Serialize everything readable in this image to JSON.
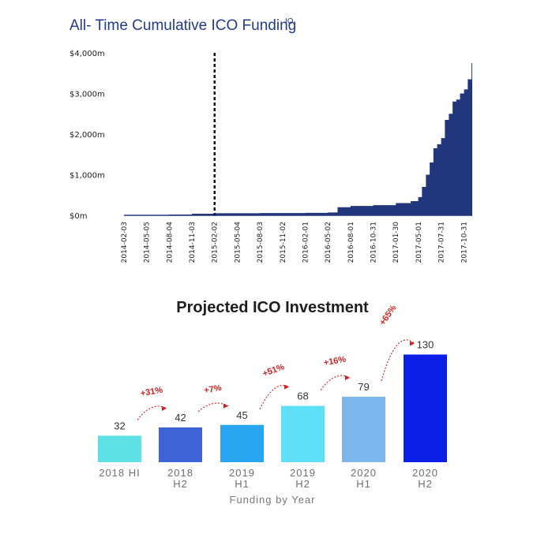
{
  "chart_data": [
    {
      "type": "area",
      "title": "All- Time Cumulative ICO Funding",
      "title_superscript": "IO",
      "ylim": [
        0,
        4000
      ],
      "y_ticks": [
        "$0m",
        "$1,000m",
        "$2,000m",
        "$3,000m",
        "$4,000m"
      ],
      "x_tick_labels": [
        "2014-02-03",
        "2014-05-05",
        "2014-08-04",
        "2014-11-03",
        "2015-02-02",
        "2015-05-04",
        "2015-08-03",
        "2015-11-02",
        "2016-02-01",
        "2016-05-02",
        "2016-08-01",
        "2016-10-31",
        "2017-01-30",
        "2017-05-01",
        "2017-07-31",
        "2017-10-31"
      ],
      "x_domain": [
        "2014-02-03",
        "2017-12-03"
      ],
      "marker_date": "2015-02-02",
      "fill_color": "#22367d",
      "x": [
        "2014-02-03",
        "2014-05-05",
        "2014-08-04",
        "2014-11-03",
        "2015-02-02",
        "2015-08-03",
        "2016-02-01",
        "2016-05-02",
        "2016-06-10",
        "2016-08-01",
        "2016-10-31",
        "2017-01-30",
        "2017-03-31",
        "2017-04-30",
        "2017-05-15",
        "2017-05-31",
        "2017-06-15",
        "2017-06-30",
        "2017-07-15",
        "2017-07-31",
        "2017-08-15",
        "2017-08-31",
        "2017-09-15",
        "2017-09-30",
        "2017-10-15",
        "2017-10-31",
        "2017-11-15",
        "2017-11-30",
        "2017-12-03"
      ],
      "values": [
        0,
        10,
        20,
        40,
        50,
        55,
        60,
        70,
        200,
        230,
        250,
        300,
        350,
        450,
        700,
        1000,
        1300,
        1650,
        1750,
        1900,
        2350,
        2500,
        2800,
        2850,
        3000,
        3100,
        3350,
        3750,
        3800
      ]
    },
    {
      "type": "bar",
      "title": "Projected ICO Investment",
      "xlabel": "Funding by Year",
      "ylim": [
        0,
        130
      ],
      "categories": [
        [
          "2018 HI"
        ],
        [
          "2018",
          "H2"
        ],
        [
          "2019",
          "H1"
        ],
        [
          "2019",
          "H2"
        ],
        [
          "2020",
          "H1"
        ],
        [
          "2020",
          "H2"
        ]
      ],
      "values": [
        32,
        42,
        45,
        68,
        79,
        130
      ],
      "colors": [
        "#5fe0e4",
        "#3d64d6",
        "#27a5f0",
        "#5ee1f7",
        "#7bb7ec",
        "#0a1ee8"
      ],
      "growth_labels": [
        "+31%",
        "+7%",
        "+51%",
        "+16%",
        "+65%"
      ],
      "growth_color": "#d11f1f"
    }
  ]
}
